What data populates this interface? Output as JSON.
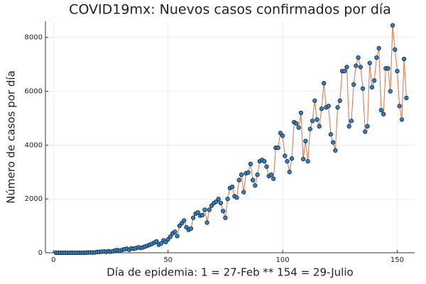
{
  "chart_data": {
    "type": "line",
    "title": "COVID19mx: Nuevos casos confirmados por día",
    "x_label": "Día de epidemia: 1 = 27-Feb ** 154 = 29-Julio",
    "y_label": "Número de casos por día",
    "xlim": [
      -3.5,
      157.6
    ],
    "ylim": [
      0,
      8600
    ],
    "xticks": [
      0,
      50,
      100,
      150
    ],
    "yticks": [
      0,
      2000,
      4000,
      6000,
      8000
    ],
    "grid": true,
    "x": [
      1,
      2,
      3,
      4,
      5,
      6,
      7,
      8,
      9,
      10,
      11,
      12,
      13,
      14,
      15,
      16,
      17,
      18,
      19,
      20,
      21,
      22,
      23,
      24,
      25,
      26,
      27,
      28,
      29,
      30,
      31,
      32,
      33,
      34,
      35,
      36,
      37,
      38,
      39,
      40,
      41,
      42,
      43,
      44,
      45,
      46,
      47,
      48,
      49,
      50,
      51,
      52,
      53,
      54,
      55,
      56,
      57,
      58,
      59,
      60,
      61,
      62,
      63,
      64,
      65,
      66,
      67,
      68,
      69,
      70,
      71,
      72,
      73,
      74,
      75,
      76,
      77,
      78,
      79,
      80,
      81,
      82,
      83,
      84,
      85,
      86,
      87,
      88,
      89,
      90,
      91,
      92,
      93,
      94,
      95,
      96,
      97,
      98,
      99,
      100,
      101,
      102,
      103,
      104,
      105,
      106,
      107,
      108,
      109,
      110,
      111,
      112,
      113,
      114,
      115,
      116,
      117,
      118,
      119,
      120,
      121,
      122,
      123,
      124,
      125,
      126,
      127,
      128,
      129,
      130,
      131,
      132,
      133,
      134,
      135,
      136,
      137,
      138,
      139,
      140,
      141,
      142,
      143,
      144,
      145,
      146,
      147,
      148,
      149,
      150,
      151,
      152,
      153,
      154
    ],
    "series": [
      {
        "color": "#e26f46",
        "marker_color": "#2f7fc1",
        "values": [
          1,
          0,
          1,
          0,
          1,
          0,
          0,
          1,
          0,
          2,
          4,
          0,
          2,
          4,
          12,
          11,
          9,
          11,
          29,
          32,
          40,
          50,
          35,
          60,
          40,
          60,
          90,
          100,
          70,
          110,
          130,
          150,
          110,
          160,
          150,
          170,
          200,
          180,
          200,
          230,
          260,
          300,
          330,
          380,
          420,
          300,
          350,
          460,
          400,
          500,
          600,
          720,
          780,
          620,
          1000,
          1100,
          1200,
          950,
          850,
          900,
          1300,
          1450,
          1500,
          1380,
          1400,
          1600,
          1120,
          1600,
          1750,
          1850,
          1900,
          2000,
          1850,
          1550,
          1300,
          2000,
          2400,
          2450,
          2100,
          2050,
          2700,
          2900,
          2250,
          2950,
          2980,
          3300,
          2700,
          2500,
          2900,
          3400,
          3450,
          3400,
          3200,
          2850,
          2900,
          2750,
          3900,
          3900,
          4450,
          4350,
          3600,
          3400,
          3000,
          3500,
          4850,
          4800,
          4650,
          5200,
          3480,
          4150,
          3400,
          4600,
          4900,
          5650,
          4950,
          4700,
          5350,
          6300,
          5400,
          5450,
          4400,
          4100,
          3800,
          5400,
          5650,
          6750,
          6750,
          6900,
          4700,
          4900,
          6250,
          6950,
          7250,
          6900,
          6100,
          4500,
          4700,
          7050,
          6150,
          6400,
          7250,
          7600,
          5300,
          5150,
          6850,
          6850,
          6000,
          8450,
          7550,
          6750,
          5450,
          4950,
          7200,
          5750
        ]
      }
    ]
  }
}
